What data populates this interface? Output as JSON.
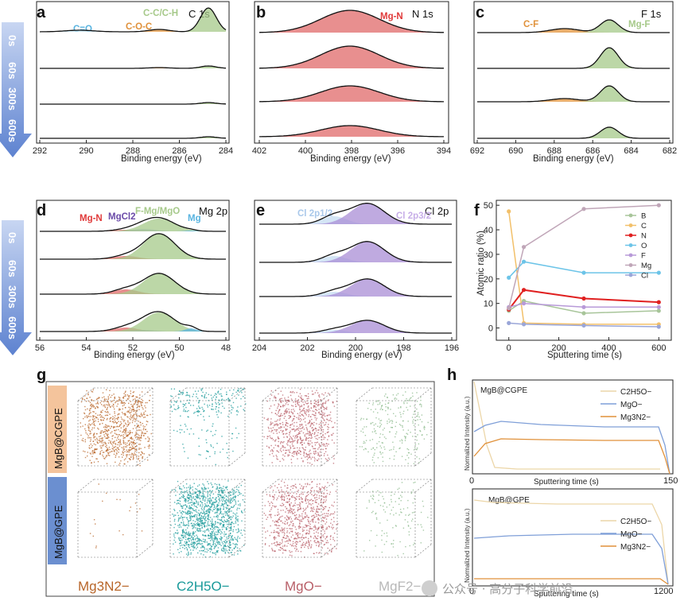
{
  "panel_labels": [
    "a",
    "b",
    "c",
    "d",
    "e",
    "f",
    "g",
    "h"
  ],
  "time_labels": [
    "0s",
    "60s",
    "300s",
    "600s"
  ],
  "xlabel": "Binding energy (eV)",
  "panel_a": {
    "element": "C 1s",
    "xticks": [
      "292",
      "290",
      "288",
      "286",
      "284"
    ],
    "peaks": [
      "C=O",
      "C-O-C",
      "C-C/C-H"
    ]
  },
  "panel_b": {
    "element": "N 1s",
    "xticks": [
      "402",
      "400",
      "398",
      "396",
      "394"
    ],
    "peaks": [
      "Mg-N"
    ]
  },
  "panel_c": {
    "element": "F 1s",
    "xticks": [
      "692",
      "690",
      "688",
      "686",
      "684",
      "682"
    ],
    "peaks": [
      "C-F",
      "Mg-F"
    ]
  },
  "panel_d": {
    "element": "Mg 2p",
    "xticks": [
      "56",
      "54",
      "52",
      "50",
      "48"
    ],
    "peaks": [
      "Mg-N",
      "MgCl2",
      "F-Mg/MgO",
      "Mg"
    ]
  },
  "panel_e": {
    "element": "Cl 2p",
    "xticks": [
      "204",
      "202",
      "200",
      "198",
      "196"
    ],
    "peaks": [
      "Cl 2p1/2",
      "Cl 2p3/2"
    ]
  },
  "panel_f": {
    "ylabel": "Atomic ratio (%)",
    "xlabel": "Sputtering time (s)",
    "xticks": [
      "0",
      "200",
      "400",
      "600"
    ],
    "yticks": [
      "0",
      "10",
      "20",
      "30",
      "40",
      "50"
    ]
  },
  "panel_g": {
    "row_labels": [
      "MgB@CGPE",
      "MgB@GPE"
    ],
    "ion_labels": [
      "Mg3N2−",
      "C2H5O−",
      "MgO−",
      "MgF2−"
    ]
  },
  "panel_h": {
    "top": {
      "title": "MgB@CGPE",
      "ylabel": "Normalized Intensity (a.u.)",
      "xlabel": "Sputtering time (s)",
      "xticks": [
        "0",
        "150"
      ],
      "legend": [
        "C2H5O−",
        "MgO−",
        "Mg3N2−"
      ]
    },
    "bottom": {
      "title": "MgB@GPE",
      "ylabel": "Normalized Intensity (a.u.)",
      "xlabel": "Sputtering time (s)",
      "xticks": [
        "0",
        "1200"
      ],
      "legend": [
        "C2H5O−",
        "MgO−",
        "Mg3N2−"
      ]
    }
  },
  "watermark": "公众号 · 高分子科学前沿",
  "colors": {
    "green": "#a6c98a",
    "red": "#e06a6a",
    "purple": "#a98ed6",
    "orange": "#e0913a",
    "blue": "#59b4e0",
    "arrow": "#7f9fd8",
    "tag_orange": "#f4c49c",
    "tag_blue": "#6b8fd0",
    "teal": "#1a9a9a",
    "brown": "#b8662a",
    "rose": "#b85f68"
  },
  "chart_data": [
    {
      "type": "line",
      "title": "",
      "xlabel": "Sputtering time (s)",
      "ylabel": "Atomic ratio (%)",
      "xlim": [
        -50,
        650
      ],
      "ylim": [
        -5,
        52
      ],
      "x": [
        0,
        60,
        300,
        600
      ],
      "legend_position": "top-right",
      "series": [
        {
          "name": "B",
          "color": "#a8c59a",
          "values": [
            7,
            11,
            6,
            7
          ]
        },
        {
          "name": "C",
          "color": "#f2c06a",
          "values": [
            47.5,
            2,
            1.5,
            1.5
          ]
        },
        {
          "name": "N",
          "color": "#e02020",
          "values": [
            7.5,
            15.5,
            12,
            10.5
          ]
        },
        {
          "name": "O",
          "color": "#6cc4e8",
          "values": [
            20.5,
            27,
            22.5,
            22.5
          ]
        },
        {
          "name": "F",
          "color": "#b89ad8",
          "values": [
            8.5,
            10,
            8.5,
            8.5
          ]
        },
        {
          "name": "Mg",
          "color": "#c0a6b8",
          "values": [
            8,
            33,
            48.5,
            50
          ]
        },
        {
          "name": "Cl",
          "color": "#9aa6d8",
          "values": [
            2,
            1.5,
            1,
            0.5
          ]
        }
      ]
    }
  ]
}
